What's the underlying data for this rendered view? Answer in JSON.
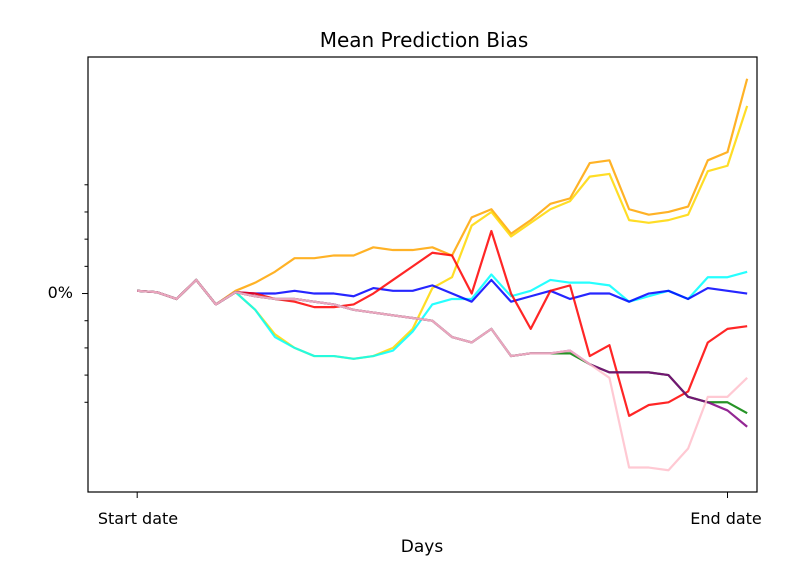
{
  "chart_data": {
    "type": "line",
    "title": "Mean Prediction Bias",
    "xlabel": "Days",
    "ylabel": "",
    "x_tick_labels": [
      "Start date",
      "End date"
    ],
    "y_tick_labels": [
      "0%"
    ],
    "x_ticks": [
      0,
      30
    ],
    "xlim": [
      -2.5,
      31.5
    ],
    "y_label_value": 0,
    "ylim": [
      -7.3,
      8.7
    ],
    "y_minor_ticks": [
      4,
      3,
      2,
      1,
      -1,
      -2,
      -3,
      -4
    ],
    "grid": false,
    "legend": "none",
    "series": [
      {
        "color": "#ffa500",
        "values": [
          0.1,
          0.05,
          -0.2,
          0.5,
          -0.4,
          0.1,
          0.4,
          0.8,
          1.3,
          1.3,
          1.4,
          1.4,
          1.7,
          1.6,
          1.6,
          1.7,
          1.4,
          2.8,
          3.1,
          2.2,
          2.7,
          3.3,
          3.5,
          4.8,
          4.9,
          3.1,
          2.9,
          3.0,
          3.2,
          4.9,
          5.2,
          7.9
        ]
      },
      {
        "color": "#ffd700",
        "values": [
          0.1,
          0.05,
          -0.2,
          0.5,
          -0.4,
          0.05,
          -0.6,
          -1.5,
          -2.0,
          -2.3,
          -2.3,
          -2.4,
          -2.3,
          -2.0,
          -1.3,
          0.2,
          0.6,
          2.5,
          3.0,
          2.1,
          2.6,
          3.1,
          3.4,
          4.3,
          4.4,
          2.7,
          2.6,
          2.7,
          2.9,
          4.5,
          4.7,
          6.9
        ]
      },
      {
        "color": "#00ffff",
        "values": [
          0.1,
          0.05,
          -0.2,
          0.5,
          -0.4,
          0.05,
          -0.6,
          -1.6,
          -2.0,
          -2.3,
          -2.3,
          -2.4,
          -2.3,
          -2.1,
          -1.4,
          -0.4,
          -0.2,
          -0.2,
          0.7,
          -0.1,
          0.1,
          0.5,
          0.4,
          0.4,
          0.3,
          -0.3,
          -0.1,
          0.1,
          -0.2,
          0.6,
          0.6,
          0.8
        ]
      },
      {
        "color": "#0000ff",
        "values": [
          0.1,
          0.05,
          -0.2,
          0.5,
          -0.4,
          0.05,
          0.0,
          0.0,
          0.1,
          0.0,
          0.0,
          -0.1,
          0.2,
          0.1,
          0.1,
          0.3,
          0.0,
          -0.3,
          0.5,
          -0.3,
          -0.1,
          0.1,
          -0.2,
          0.0,
          0.0,
          -0.3,
          0.0,
          0.1,
          -0.2,
          0.2,
          0.1,
          0.0
        ]
      },
      {
        "color": "#ff0000",
        "values": [
          0.1,
          0.05,
          -0.2,
          0.5,
          -0.4,
          0.05,
          0.0,
          -0.2,
          -0.3,
          -0.5,
          -0.5,
          -0.4,
          0.0,
          0.5,
          1.0,
          1.5,
          1.4,
          0.0,
          2.3,
          0.0,
          -1.3,
          0.1,
          0.3,
          -2.3,
          -1.9,
          -4.5,
          -4.1,
          -4.0,
          -3.6,
          -1.8,
          -1.3,
          -1.2
        ]
      },
      {
        "color": "#008000",
        "values": [
          0.1,
          0.05,
          -0.2,
          0.5,
          -0.4,
          0.05,
          -0.1,
          -0.2,
          -0.2,
          -0.3,
          -0.4,
          -0.6,
          -0.7,
          -0.8,
          -0.9,
          -1.0,
          -1.6,
          -1.8,
          -1.3,
          -2.3,
          -2.2,
          -2.2,
          -2.2,
          -2.6,
          -2.9,
          -2.9,
          -2.9,
          -3.0,
          -3.8,
          -4.0,
          -4.0,
          -4.4
        ]
      },
      {
        "color": "#800080",
        "values": [
          0.1,
          0.05,
          -0.2,
          0.5,
          -0.4,
          0.05,
          -0.1,
          -0.2,
          -0.2,
          -0.3,
          -0.4,
          -0.6,
          -0.7,
          -0.8,
          -0.9,
          -1.0,
          -1.6,
          -1.8,
          -1.3,
          -2.3,
          -2.2,
          -2.2,
          -2.1,
          -2.6,
          -2.9,
          -2.9,
          -2.9,
          -3.0,
          -3.8,
          -4.0,
          -4.3,
          -4.9
        ]
      },
      {
        "color": "#ffc0cb",
        "values": [
          0.1,
          0.05,
          -0.2,
          0.5,
          -0.4,
          0.05,
          -0.1,
          -0.2,
          -0.2,
          -0.3,
          -0.4,
          -0.6,
          -0.7,
          -0.8,
          -0.9,
          -1.0,
          -1.6,
          -1.8,
          -1.3,
          -2.3,
          -2.2,
          -2.2,
          -2.1,
          -2.6,
          -3.1,
          -6.4,
          -6.4,
          -6.5,
          -5.7,
          -3.8,
          -3.8,
          -3.1
        ]
      }
    ]
  }
}
